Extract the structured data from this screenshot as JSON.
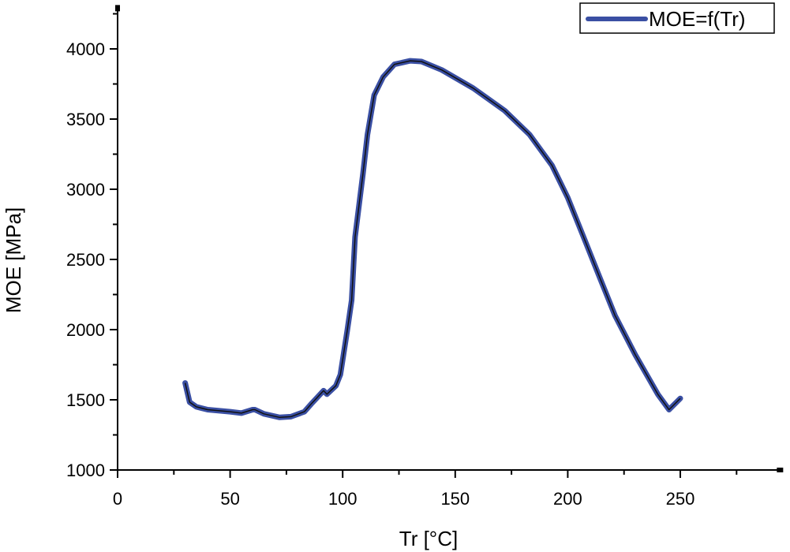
{
  "chart_data": {
    "type": "line",
    "title": "",
    "xlabel": "Tr [°C]",
    "ylabel": "MOE [MPa]",
    "xlim": [
      0,
      295
    ],
    "ylim": [
      1000,
      4290
    ],
    "xticks": [
      0,
      50,
      100,
      150,
      200,
      250
    ],
    "xtick_labels": [
      "0",
      "50",
      "100",
      "150",
      "200",
      "250"
    ],
    "yticks": [
      1000,
      1500,
      2000,
      2500,
      3000,
      3500,
      4000
    ],
    "ytick_labels": [
      "1000",
      "1500",
      "2000",
      "2500",
      "3000",
      "3500",
      "4000"
    ],
    "grid": false,
    "legend_position": "top-right",
    "series": [
      {
        "name": "MOE=f(Tr)",
        "color": "#3a4fa3",
        "x": [
          30,
          32,
          35,
          40,
          50,
          55,
          60,
          61,
          65,
          72,
          77,
          83,
          86,
          91.5,
          93,
          97,
          99,
          102,
          104,
          105.5,
          109,
          111,
          114,
          118,
          123,
          130,
          135,
          144,
          158,
          172,
          183,
          193,
          200,
          207,
          214,
          221,
          230,
          240,
          245,
          250
        ],
        "y": [
          1620,
          1483,
          1450,
          1430,
          1415,
          1405,
          1430,
          1430,
          1400,
          1375,
          1380,
          1415,
          1470,
          1565,
          1540,
          1600,
          1680,
          1990,
          2210,
          2660,
          3110,
          3390,
          3670,
          3800,
          3890,
          3915,
          3910,
          3850,
          3720,
          3560,
          3390,
          3170,
          2940,
          2660,
          2380,
          2100,
          1820,
          1540,
          1430,
          1510
        ]
      }
    ]
  }
}
